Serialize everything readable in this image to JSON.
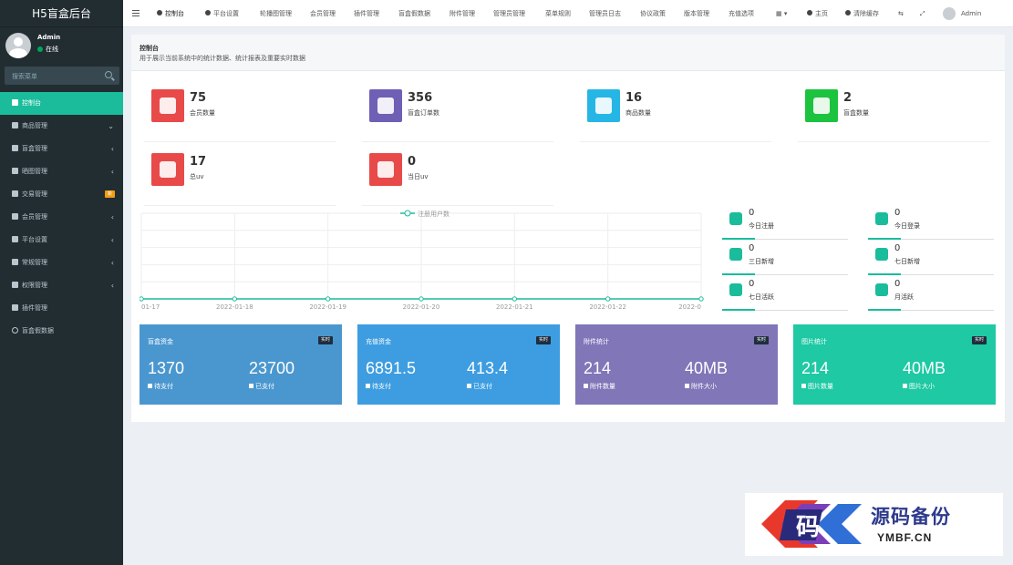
{
  "app": {
    "title": "H5盲盒后台"
  },
  "user": {
    "name": "Admin",
    "status": "在线"
  },
  "sidebar": {
    "search_placeholder": "搜索菜单",
    "items": [
      {
        "label": "控制台",
        "active": true
      },
      {
        "label": "商品管理"
      },
      {
        "label": "盲盒管理"
      },
      {
        "label": "晒图管理"
      },
      {
        "label": "交易管理",
        "badge": "新"
      },
      {
        "label": "会员管理"
      },
      {
        "label": "平台设置"
      },
      {
        "label": "常规管理"
      },
      {
        "label": "权限管理"
      },
      {
        "label": "插件管理"
      },
      {
        "label": "盲盒假数据"
      }
    ]
  },
  "topbar": {
    "tabs": [
      "控制台",
      "平台设置",
      "轮播图管理",
      "会员管理",
      "插件管理",
      "盲盒假数据",
      "附件管理",
      "管理员管理",
      "菜单规则",
      "管理员日志",
      "协议政策",
      "版本管理",
      "充值选项"
    ],
    "home": "主页",
    "clear_cache": "清除缓存",
    "admin": "Admin"
  },
  "header": {
    "title": "控制台",
    "description": "用于展示当前系统中的统计数据、统计报表及重要实时数据"
  },
  "stats": [
    {
      "value": "75",
      "label": "会员数量",
      "color": "#e84a4a"
    },
    {
      "value": "356",
      "label": "盲盒订单数",
      "color": "#6f5fb5"
    },
    {
      "value": "16",
      "label": "商品数量",
      "color": "#26b6e6"
    },
    {
      "value": "2",
      "label": "盲盒数量",
      "color": "#1cc33e"
    },
    {
      "value": "17",
      "label": "总uv",
      "color": "#e84a4a"
    },
    {
      "value": "0",
      "label": "当日uv",
      "color": "#e84a4a"
    }
  ],
  "chart_data": {
    "type": "line",
    "legend": "注册用户数",
    "x": [
      "01-17",
      "2022-01-18",
      "2022-01-19",
      "2022-01-20",
      "2022-01-21",
      "2022-01-22",
      "2022-0"
    ],
    "series": [
      {
        "name": "注册用户数",
        "values": [
          0,
          0,
          0,
          0,
          0,
          0,
          0
        ]
      }
    ],
    "color": "#1abc9c"
  },
  "mini_stats": [
    {
      "value": "0",
      "label": "今日注册"
    },
    {
      "value": "0",
      "label": "今日登录"
    },
    {
      "value": "0",
      "label": "三日新增"
    },
    {
      "value": "0",
      "label": "七日新增"
    },
    {
      "value": "0",
      "label": "七日活跃"
    },
    {
      "value": "0",
      "label": "月活跃"
    }
  ],
  "cards": [
    {
      "title": "盲盒资金",
      "badge": "实时",
      "v1": "1370",
      "l1": "待支付",
      "v2": "23700",
      "l2": "已支付",
      "color": "#4a97cf"
    },
    {
      "title": "充值资金",
      "badge": "实时",
      "v1": "6891.5",
      "l1": "待支付",
      "v2": "413.4",
      "l2": "已支付",
      "color": "#3d9de0"
    },
    {
      "title": "附件统计",
      "badge": "实时",
      "v1": "214",
      "l1": "附件数量",
      "v2": "40MB",
      "l2": "附件大小",
      "color": "#8076b8"
    },
    {
      "title": "图片统计",
      "badge": "实时",
      "v1": "214",
      "l1": "图片数量",
      "v2": "40MB",
      "l2": "图片大小",
      "color": "#1ec9a4"
    }
  ],
  "watermark": {
    "name": "源码备份",
    "url": "YMBF.CN",
    "logo_char": "码"
  }
}
